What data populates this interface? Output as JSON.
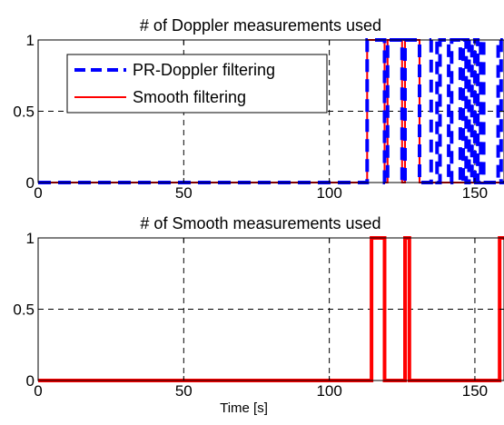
{
  "chart_data": [
    {
      "type": "line",
      "title": "# of Doppler measurements used",
      "xlabel": "",
      "ylabel": "",
      "xlim": [
        0,
        160
      ],
      "ylim": [
        0,
        1
      ],
      "xticks": [
        0,
        50,
        100,
        150
      ],
      "yticks": [
        0,
        0.5,
        1
      ],
      "xtick_labels": [
        "0",
        "50",
        "100",
        "150"
      ],
      "ytick_labels": [
        "0",
        "0.5",
        "1"
      ],
      "grid": true,
      "legend": {
        "position": "top-left"
      },
      "series": [
        {
          "name": "PR-Doppler filtering",
          "color": "#0000ff",
          "style": "dashed",
          "x": [
            0,
            113,
            113,
            119,
            119,
            120,
            120,
            125,
            125,
            126,
            126,
            131,
            131,
            135,
            135,
            137,
            137,
            138,
            138,
            141,
            141,
            142,
            142,
            145,
            145,
            146,
            146,
            147,
            147,
            148,
            148,
            149,
            149,
            150,
            150,
            151,
            151,
            152,
            152,
            153,
            153,
            158,
            158,
            159,
            159,
            160
          ],
          "y": [
            0,
            0,
            1,
            1,
            0,
            0,
            1,
            1,
            0,
            0,
            1,
            1,
            0,
            0,
            1,
            1,
            0,
            0,
            1,
            1,
            0,
            0,
            1,
            1,
            0,
            0,
            1,
            1,
            0,
            0,
            1,
            1,
            0,
            0,
            1,
            1,
            0,
            0,
            1,
            1,
            0,
            0,
            1,
            1,
            0,
            0
          ]
        },
        {
          "name": "Smooth filtering",
          "color": "#ff0000",
          "style": "solid",
          "x": [
            0,
            113,
            113,
            119,
            119,
            120,
            120,
            125,
            125,
            126,
            126,
            131,
            131,
            160
          ],
          "y": [
            0,
            0,
            1,
            1,
            0,
            0,
            1,
            1,
            0,
            0,
            1,
            1,
            0,
            0
          ]
        }
      ]
    },
    {
      "type": "line",
      "title": "# of Smooth measurements used",
      "xlabel": "Time [s]",
      "ylabel": "",
      "xlim": [
        0,
        160
      ],
      "ylim": [
        0,
        1
      ],
      "xticks": [
        0,
        50,
        100,
        150
      ],
      "yticks": [
        0,
        0.5,
        1
      ],
      "xtick_labels": [
        "0",
        "50",
        "100",
        "150"
      ],
      "ytick_labels": [
        "0",
        "0.5",
        "1"
      ],
      "grid": true,
      "series": [
        {
          "color": "#ff0000",
          "style": "solid",
          "x": [
            0,
            114.5,
            114.5,
            119,
            119,
            126,
            126,
            127.5,
            127.5,
            158.5,
            158.5,
            160
          ],
          "y": [
            0,
            0,
            1,
            1,
            0,
            0,
            1,
            1,
            0,
            0,
            1,
            1
          ]
        }
      ]
    }
  ]
}
